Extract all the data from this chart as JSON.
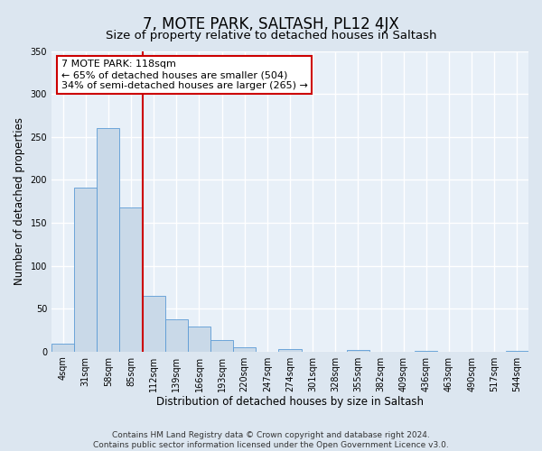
{
  "title": "7, MOTE PARK, SALTASH, PL12 4JX",
  "subtitle": "Size of property relative to detached houses in Saltash",
  "xlabel": "Distribution of detached houses by size in Saltash",
  "ylabel": "Number of detached properties",
  "bar_labels": [
    "4sqm",
    "31sqm",
    "58sqm",
    "85sqm",
    "112sqm",
    "139sqm",
    "166sqm",
    "193sqm",
    "220sqm",
    "247sqm",
    "274sqm",
    "301sqm",
    "328sqm",
    "355sqm",
    "382sqm",
    "409sqm",
    "436sqm",
    "463sqm",
    "490sqm",
    "517sqm",
    "544sqm"
  ],
  "bar_values": [
    9,
    191,
    260,
    168,
    65,
    37,
    29,
    13,
    5,
    0,
    3,
    0,
    0,
    2,
    0,
    0,
    1,
    0,
    0,
    0,
    1
  ],
  "bar_color": "#c9d9e8",
  "bar_edge_color": "#5b9bd5",
  "background_color": "#dce6f0",
  "plot_bg_color": "#e8f0f8",
  "grid_color": "#ffffff",
  "vline_x": 4.0,
  "vline_color": "#cc0000",
  "annotation_text": "7 MOTE PARK: 118sqm\n← 65% of detached houses are smaller (504)\n34% of semi-detached houses are larger (265) →",
  "annotation_box_color": "#ffffff",
  "annotation_box_edge": "#cc0000",
  "ylim": [
    0,
    350
  ],
  "yticks": [
    0,
    50,
    100,
    150,
    200,
    250,
    300,
    350
  ],
  "footer_line1": "Contains HM Land Registry data © Crown copyright and database right 2024.",
  "footer_line2": "Contains public sector information licensed under the Open Government Licence v3.0.",
  "title_fontsize": 12,
  "subtitle_fontsize": 9.5,
  "axis_label_fontsize": 8.5,
  "tick_fontsize": 7,
  "annotation_fontsize": 8,
  "footer_fontsize": 6.5
}
